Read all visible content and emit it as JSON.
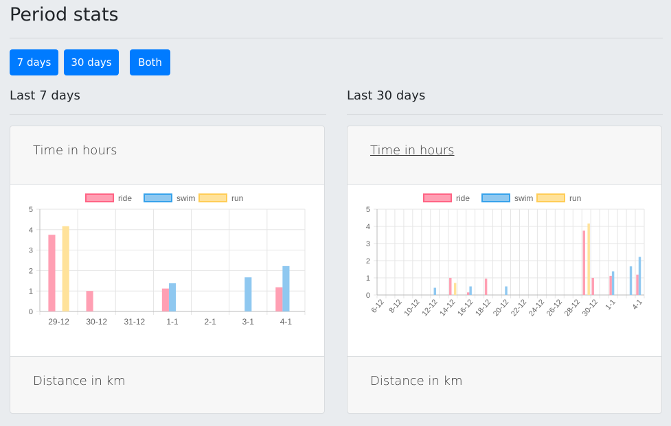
{
  "page": {
    "title": "Period stats"
  },
  "buttons": [
    {
      "label": "7 days"
    },
    {
      "label": "30 days"
    },
    {
      "label": "Both"
    }
  ],
  "sections": {
    "left": {
      "title": "Last 7 days",
      "card_header": "Time in hours",
      "card_footer": "Distance in km"
    },
    "right": {
      "title": "Last 30 days",
      "card_header": "Time in hours",
      "card_footer": "Distance in km"
    }
  },
  "colors": {
    "primary": "#007bff",
    "ride": "#ff9fb3",
    "ride_border": "#ff6384",
    "swim": "#8fc8f0",
    "swim_border": "#36a2eb",
    "run": "#ffe29a",
    "run_border": "#ffcd56"
  },
  "chart_data": [
    {
      "type": "bar",
      "legend": [
        "ride",
        "swim",
        "run"
      ],
      "legend_position": "top",
      "categories": [
        "29-12",
        "30-12",
        "31-12",
        "1-1",
        "2-1",
        "3-1",
        "4-1"
      ],
      "series": [
        {
          "name": "ride",
          "values": [
            3.75,
            1.0,
            0,
            1.12,
            0,
            0,
            1.18
          ]
        },
        {
          "name": "swim",
          "values": [
            0,
            0,
            0,
            1.38,
            0,
            1.67,
            2.22
          ]
        },
        {
          "name": "run",
          "values": [
            4.17,
            0,
            0,
            0,
            0,
            0,
            0
          ]
        }
      ],
      "y_ticks": [
        0,
        1,
        2,
        3,
        4,
        5
      ],
      "ylim": [
        0,
        5
      ],
      "grid": true
    },
    {
      "type": "bar",
      "legend": [
        "ride",
        "swim",
        "run"
      ],
      "legend_position": "top",
      "categories": [
        "6-12",
        "7-12",
        "8-12",
        "9-12",
        "10-12",
        "11-12",
        "12-12",
        "13-12",
        "14-12",
        "15-12",
        "16-12",
        "17-12",
        "18-12",
        "19-12",
        "20-12",
        "21-12",
        "22-12",
        "23-12",
        "24-12",
        "25-12",
        "26-12",
        "27-12",
        "28-12",
        "29-12",
        "30-12",
        "31-12",
        "1-1",
        "2-1",
        "3-1",
        "4-1"
      ],
      "x_tick_labels": [
        "6-12",
        "8-12",
        "10-12",
        "12-12",
        "14-12",
        "16-12",
        "18-12",
        "20-12",
        "22-12",
        "24-12",
        "26-12",
        "28-12",
        "30-12",
        "1-1",
        "4-1"
      ],
      "series": [
        {
          "name": "ride",
          "values": [
            0,
            0,
            0,
            0,
            0,
            0,
            0,
            0,
            1.0,
            0,
            0.15,
            0,
            0.95,
            0,
            0,
            0,
            0,
            0,
            0,
            0,
            0,
            0,
            0,
            3.75,
            1.0,
            0,
            1.12,
            0,
            0,
            1.18
          ]
        },
        {
          "name": "swim",
          "values": [
            0,
            0,
            0,
            0,
            0,
            0,
            0.42,
            0,
            0,
            0,
            0.5,
            0,
            0,
            0,
            0.5,
            0,
            0,
            0,
            0,
            0,
            0,
            0,
            0,
            0,
            0,
            0,
            1.38,
            0,
            1.67,
            2.22
          ]
        },
        {
          "name": "run",
          "values": [
            0,
            0,
            0,
            0,
            0,
            0,
            0,
            0,
            0.7,
            0,
            0,
            0,
            0,
            0,
            0,
            0,
            0,
            0,
            0,
            0,
            0,
            0,
            0,
            4.17,
            0,
            0,
            0,
            0,
            0,
            0
          ]
        }
      ],
      "y_ticks": [
        0,
        1,
        2,
        3,
        4,
        5
      ],
      "ylim": [
        0,
        5
      ],
      "grid": true
    }
  ]
}
